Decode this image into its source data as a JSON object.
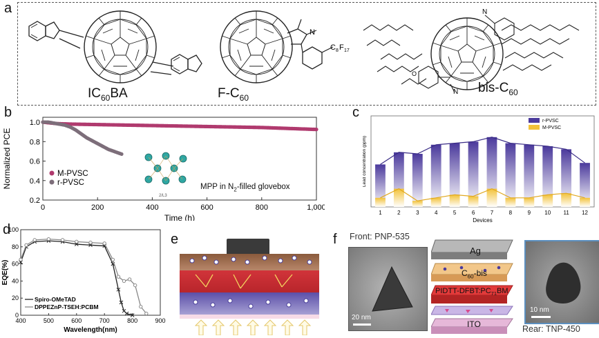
{
  "panels": {
    "a": "a",
    "b": "b",
    "c": "c",
    "d": "d",
    "e": "e",
    "f": "f"
  },
  "panel_a": {
    "molecules": [
      {
        "name": "IC60BA",
        "pre": "IC",
        "sub": "60",
        "post": "BA"
      },
      {
        "name": "F-C60",
        "pre": "F-C",
        "sub": "60",
        "post": ""
      },
      {
        "name": "bis-C60",
        "pre": "bis-C",
        "sub": "60",
        "post": ""
      }
    ],
    "fc60_atoms": {
      "n": "N",
      "c": "C",
      "c_sub": "8",
      "f": "F",
      "f_sub": "17"
    },
    "bis_atoms": {
      "n": "N",
      "o": "O"
    }
  },
  "panel_b": {
    "annotation_pre": "MPP in N",
    "annotation_sub": "2",
    "annotation_post": "-filled glovebox",
    "inset_caption": "2/L3",
    "colors": {
      "M-PVSC": "#b03a6e",
      "r-PVSC": "#7d6e7a"
    }
  },
  "panel_c": {
    "colors": {
      "r-PVSC": "#4b3a9c",
      "M-PVSC": "#f2c23a"
    }
  },
  "panel_d": {
    "colors": {
      "Spiro-OMeTAD": "#222222",
      "DPPEZnP-TSEH:PCBM": "#888888"
    }
  },
  "panel_f": {
    "front_label": "Front: PNP-535",
    "rear_label": "Rear: TNP-450",
    "scale_front": "20 nm",
    "scale_rear": "10 nm",
    "layers": {
      "ag": "Ag",
      "cbis_pre": "C",
      "cbis_sub": "60",
      "cbis_post": "-bis",
      "pidtt_pre": "PIDTT-DFBT:PC",
      "pidtt_sub": "71",
      "pidtt_post": "BM",
      "ito": "ITO"
    }
  },
  "chart_data": [
    {
      "id": "b",
      "type": "line",
      "xlabel": "Time (h)",
      "ylabel": "Normalized PCE",
      "xlim": [
        0,
        1000
      ],
      "ylim": [
        0.2,
        1.05
      ],
      "xticks": [
        0,
        200,
        400,
        600,
        800,
        1000
      ],
      "xtick_labels": [
        "0",
        "200",
        "400",
        "600",
        "800",
        "1,000"
      ],
      "yticks": [
        0.2,
        0.4,
        0.6,
        0.8,
        1.0
      ],
      "ytick_labels": [
        "0.2",
        "0.4",
        "0.6",
        "0.8",
        "1.0"
      ],
      "legend_position": "lower-left",
      "series": [
        {
          "name": "M-PVSC",
          "x": [
            0,
            50,
            100,
            200,
            300,
            400,
            500,
            600,
            700,
            800,
            900,
            1000
          ],
          "y": [
            1.0,
            0.985,
            0.98,
            0.975,
            0.97,
            0.965,
            0.96,
            0.955,
            0.95,
            0.945,
            0.935,
            0.925
          ]
        },
        {
          "name": "r-PVSC",
          "x": [
            0,
            20,
            40,
            60,
            80,
            100,
            120,
            140,
            160,
            180,
            200,
            220,
            240,
            260,
            280,
            290
          ],
          "y": [
            1.0,
            1.0,
            0.99,
            0.98,
            0.97,
            0.95,
            0.92,
            0.88,
            0.84,
            0.81,
            0.78,
            0.75,
            0.72,
            0.7,
            0.68,
            0.67
          ]
        }
      ]
    },
    {
      "id": "c",
      "type": "bar",
      "xlabel": "Devices",
      "ylabel": "Lead concentration (ppm)",
      "ylim": [
        0,
        60
      ],
      "yticks": [
        0,
        10,
        20,
        30,
        40,
        50,
        60
      ],
      "categories": [
        "1",
        "2",
        "3",
        "4",
        "5",
        "6",
        "7",
        "8",
        "9",
        "10",
        "11",
        "12"
      ],
      "legend_position": "top-right",
      "series": [
        {
          "name": "r-PVSC",
          "values": [
            28,
            36,
            35,
            41,
            42,
            43,
            46,
            42,
            41,
            40,
            38,
            29
          ]
        },
        {
          "name": "M-PVSC",
          "values": [
            6,
            12,
            4,
            6,
            8,
            7,
            12,
            6,
            6,
            8,
            9,
            6
          ]
        }
      ]
    },
    {
      "id": "d",
      "type": "line",
      "xlabel": "Wavelength(nm)",
      "ylabel": "EQE(%)",
      "xlim": [
        400,
        900
      ],
      "ylim": [
        0,
        100
      ],
      "xticks": [
        400,
        500,
        600,
        700,
        800,
        900
      ],
      "yticks": [
        0,
        20,
        40,
        60,
        80,
        100
      ],
      "legend_position": "lower-left",
      "series": [
        {
          "name": "Spiro-OMeTAD",
          "x": [
            400,
            420,
            450,
            500,
            550,
            600,
            650,
            700,
            730,
            750,
            760,
            770,
            780,
            800
          ],
          "y": [
            62,
            80,
            86,
            87,
            86,
            83,
            82,
            81,
            60,
            30,
            15,
            5,
            2,
            0
          ]
        },
        {
          "name": "DPPEZnP-TSEH:PCBM",
          "x": [
            400,
            420,
            450,
            500,
            550,
            600,
            650,
            700,
            730,
            750,
            770,
            790,
            810,
            830,
            850
          ],
          "y": [
            65,
            82,
            88,
            89,
            88,
            86,
            85,
            84,
            65,
            45,
            40,
            42,
            35,
            10,
            2
          ]
        }
      ]
    }
  ]
}
